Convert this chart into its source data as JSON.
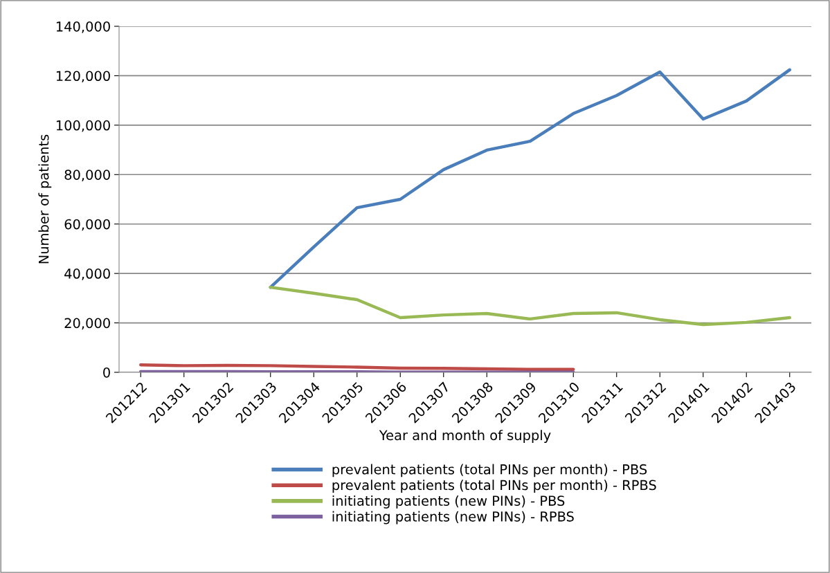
{
  "chart_data": {
    "type": "line",
    "xlabel": "Year and month of supply",
    "ylabel": "Number of patients",
    "categories": [
      "201212",
      "201301",
      "201302",
      "201303",
      "201304",
      "201305",
      "201306",
      "201307",
      "201308",
      "201309",
      "201310",
      "201311",
      "201312",
      "201401",
      "201402",
      "201403"
    ],
    "series": [
      {
        "name": "prevalent patients (total PINs per month) - PBS",
        "color": "#4a7ebb",
        "values": [
          null,
          null,
          null,
          34400,
          50700,
          66600,
          70000,
          82000,
          89900,
          93500,
          104700,
          112000,
          121500,
          102500,
          109800,
          122400
        ]
      },
      {
        "name": "prevalent patients (total PINs per month) - RPBS",
        "color": "#be4b48",
        "values": [
          3000,
          2700,
          2800,
          2700,
          2400,
          2100,
          1700,
          1600,
          1400,
          1200,
          1200,
          null,
          null,
          null,
          null,
          null
        ]
      },
      {
        "name": "initiating patients (new PINs) - PBS",
        "color": "#98b954",
        "values": [
          null,
          null,
          null,
          34400,
          32000,
          29400,
          22100,
          23200,
          23800,
          21600,
          23800,
          24100,
          21300,
          19300,
          20200,
          22100
        ]
      },
      {
        "name": "initiating patients (new PINs) - RPBS",
        "color": "#7d60a0",
        "values": [
          300,
          300,
          300,
          200,
          200,
          200,
          100,
          100,
          100,
          100,
          100,
          null,
          null,
          null,
          null,
          null
        ]
      }
    ],
    "ylim": [
      0,
      140000
    ],
    "yticks": [
      {
        "value": 0,
        "label": "0"
      },
      {
        "value": 20000,
        "label": "20,000"
      },
      {
        "value": 40000,
        "label": "40,000"
      },
      {
        "value": 60000,
        "label": "60,000"
      },
      {
        "value": 80000,
        "label": "80,000"
      },
      {
        "value": 100000,
        "label": "100,000"
      },
      {
        "value": 120000,
        "label": "120,000"
      },
      {
        "value": 140000,
        "label": "140,000"
      }
    ],
    "grid": "y",
    "legend": "bottom",
    "line_style": "solid",
    "marker": "none"
  }
}
